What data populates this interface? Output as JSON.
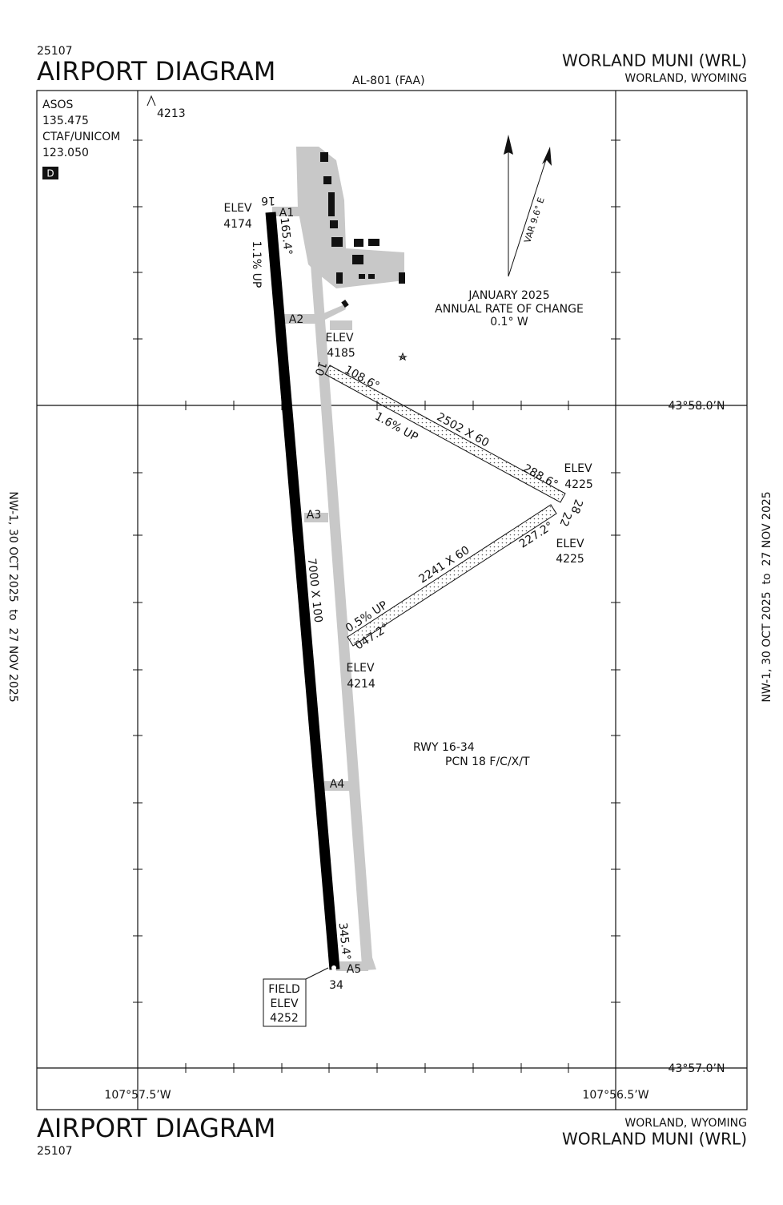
{
  "header": {
    "code": "25107",
    "title": "AIRPORT DIAGRAM",
    "procedure": "AL-801 (FAA)",
    "airport": "WORLAND MUNI (WRL)",
    "location": "WORLAND, WYOMING"
  },
  "footer": {
    "location": "WORLAND, WYOMING",
    "airport": "WORLAND MUNI (WRL)",
    "title": "AIRPORT DIAGRAM",
    "code": "25107"
  },
  "side": {
    "left": "NW-1, 30 OCT 2025  to  27 NOV 2025",
    "right": "NW-1, 30 OCT 2025  to  27 NOV 2025"
  },
  "comms": {
    "lines": [
      "ASOS",
      "135.475",
      "CTAF/UNICOM",
      "123.050"
    ],
    "badge": "D"
  },
  "obstacle": "4213",
  "magnetic": {
    "variation": "VAR 9.6° E",
    "lines": [
      "JANUARY 2025",
      "ANNUAL RATE OF CHANGE",
      "0.1° W"
    ]
  },
  "coords": {
    "lat_north": "43°58.0’N",
    "lat_south": "43°57.0’N",
    "lon_west": "107°57.5’W",
    "lon_east": "107°56.5’W"
  },
  "runway_info": [
    "RWY 16-34",
    "PCN 18 F/C/X/T"
  ],
  "field_elev": [
    "FIELD",
    "ELEV",
    "4252"
  ],
  "labels": [
    "ELEV",
    "4174",
    "16",
    "A1",
    "165.4°",
    "1.1% UP",
    "A2",
    "ELEV",
    "4185",
    "10",
    "108.6°",
    "2502 X 60",
    "1.6% UP",
    "288.6°",
    "ELEV",
    "4225",
    "28",
    "22",
    "227.2°",
    "ELEV",
    "4225",
    "A3",
    "7000 X 100",
    "2241 X 60",
    "0.5% UP",
    "047.2°",
    "ELEV",
    "4214",
    "A4",
    "345.4°",
    "A5",
    "34"
  ]
}
